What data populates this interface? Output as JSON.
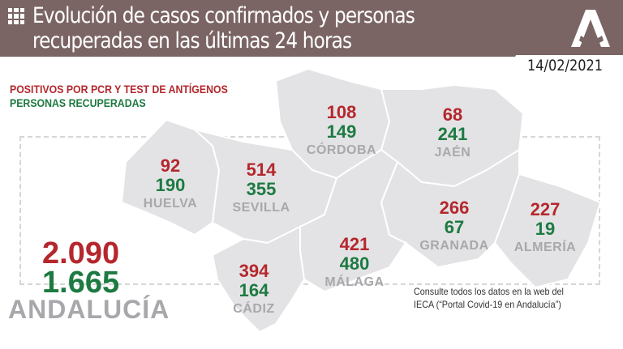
{
  "header": {
    "title_line1": "Evolución de casos confirmados y personas",
    "title_line2": "recuperadas en las últimas 24 horas",
    "date": "14/02/2021"
  },
  "legend": {
    "positives": "POSITIVOS POR PCR Y TEST DE ANTÍGENOS",
    "recovered": "PERSONAS RECUPERADAS"
  },
  "colors": {
    "header": "#7b6564",
    "positives": "#b5272d",
    "recovered": "#1d7a41",
    "map": "#e3e3e5"
  },
  "provinces": [
    {
      "name": "HUELVA",
      "positives": "92",
      "recovered": "190"
    },
    {
      "name": "SEVILLA",
      "positives": "514",
      "recovered": "355"
    },
    {
      "name": "CÓRDOBA",
      "positives": "108",
      "recovered": "149"
    },
    {
      "name": "JAÉN",
      "positives": "68",
      "recovered": "241"
    },
    {
      "name": "GRANADA",
      "positives": "266",
      "recovered": "67"
    },
    {
      "name": "ALMERÍA",
      "positives": "227",
      "recovered": "19"
    },
    {
      "name": "MÁLAGA",
      "positives": "421",
      "recovered": "480"
    },
    {
      "name": "CÁDIZ",
      "positives": "394",
      "recovered": "164"
    }
  ],
  "total": {
    "name": "ANDALUCÍA",
    "positives": "2.090",
    "recovered": "1.665"
  },
  "note": {
    "line1": "Consulte todos los datos en la web del",
    "line2": "IECA (“Portal Covid-19 en Andalucía”)"
  }
}
